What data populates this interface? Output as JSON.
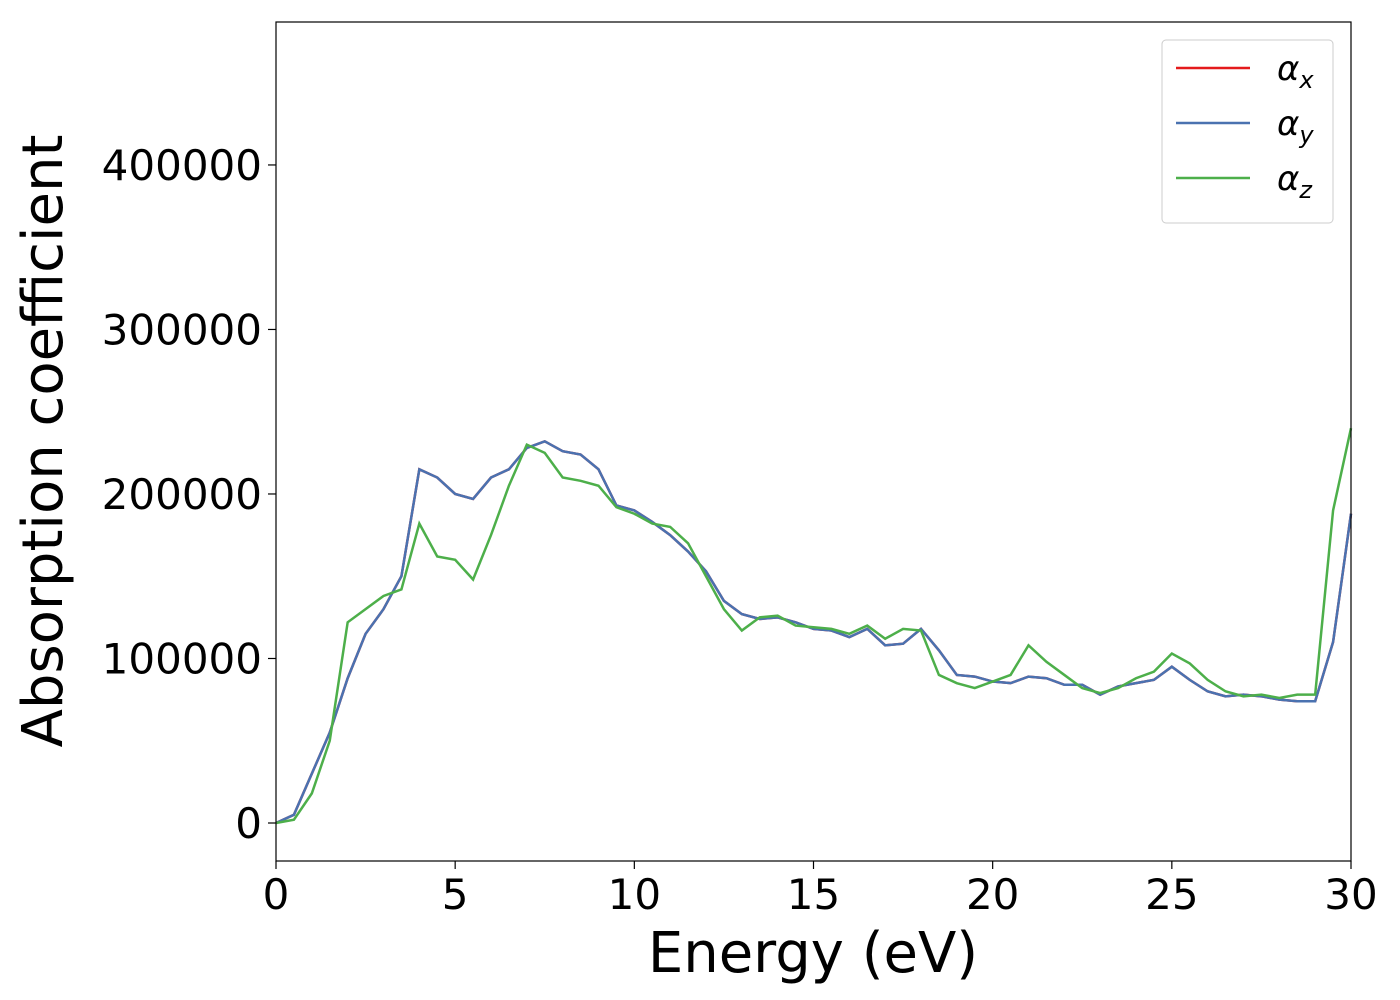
{
  "chart_data": {
    "type": "line",
    "xlabel": "Energy (eV)",
    "ylabel": "Absorption coefficient",
    "x": [
      0,
      0.5,
      1,
      1.5,
      2,
      2.5,
      3,
      3.5,
      4,
      4.5,
      5,
      5.5,
      6,
      6.5,
      7,
      7.5,
      8,
      8.5,
      9,
      9.5,
      10,
      10.5,
      11,
      11.5,
      12,
      12.5,
      13,
      13.5,
      14,
      14.5,
      15,
      15.5,
      16,
      16.5,
      17,
      17.5,
      18,
      18.5,
      19,
      19.5,
      20,
      20.5,
      21,
      21.5,
      22,
      22.5,
      23,
      23.5,
      24,
      24.5,
      25,
      25.5,
      26,
      26.5,
      27,
      27.5,
      28,
      28.5,
      29,
      29.5,
      30
    ],
    "series": [
      {
        "name": "αx",
        "color": "#e41a1c",
        "values": [
          0,
          5000,
          30000,
          55000,
          88000,
          115000,
          130000,
          150000,
          215000,
          210000,
          200000,
          197000,
          210000,
          215000,
          228000,
          232000,
          226000,
          224000,
          215000,
          193000,
          190000,
          183000,
          175000,
          165000,
          153000,
          135000,
          127000,
          124000,
          125000,
          122000,
          118000,
          117000,
          113000,
          118000,
          108000,
          109000,
          118000,
          105000,
          90000,
          89000,
          86000,
          85000,
          89000,
          88000,
          84000,
          84000,
          78000,
          83000,
          85000,
          87000,
          95000,
          87000,
          80000,
          77000,
          78000,
          77000,
          75000,
          74000,
          74000,
          110000,
          188000
        ]
      },
      {
        "name": "αy",
        "color": "#4a72b0",
        "values": [
          0,
          5000,
          30000,
          55000,
          88000,
          115000,
          130000,
          150000,
          215000,
          210000,
          200000,
          197000,
          210000,
          215000,
          228000,
          232000,
          226000,
          224000,
          215000,
          193000,
          190000,
          183000,
          175000,
          165000,
          153000,
          135000,
          127000,
          124000,
          125000,
          122000,
          118000,
          117000,
          113000,
          118000,
          108000,
          109000,
          118000,
          105000,
          90000,
          89000,
          86000,
          85000,
          89000,
          88000,
          84000,
          84000,
          78000,
          83000,
          85000,
          87000,
          95000,
          87000,
          80000,
          77000,
          78000,
          77000,
          75000,
          74000,
          74000,
          110000,
          188000
        ]
      },
      {
        "name": "αz",
        "color": "#4daf4a",
        "values": [
          0,
          2000,
          18000,
          50000,
          122000,
          130000,
          138000,
          142000,
          182000,
          162000,
          160000,
          148000,
          175000,
          205000,
          230000,
          225000,
          210000,
          208000,
          205000,
          192000,
          188000,
          182000,
          180000,
          170000,
          150000,
          130000,
          117000,
          125000,
          126000,
          120000,
          119000,
          118000,
          115000,
          120000,
          112000,
          118000,
          117000,
          90000,
          85000,
          82000,
          86000,
          90000,
          108000,
          98000,
          90000,
          82000,
          79000,
          82000,
          88000,
          92000,
          103000,
          97000,
          87000,
          80000,
          77000,
          78000,
          76000,
          78000,
          78000,
          190000,
          240000
        ]
      }
    ],
    "xlim": [
      0,
      30
    ],
    "xticks": [
      0,
      5,
      10,
      15,
      20,
      25,
      30
    ],
    "ylim": [
      -23100,
      486900
    ],
    "yticks": [
      0,
      100000,
      200000,
      300000,
      400000
    ],
    "legend": "upper right"
  }
}
